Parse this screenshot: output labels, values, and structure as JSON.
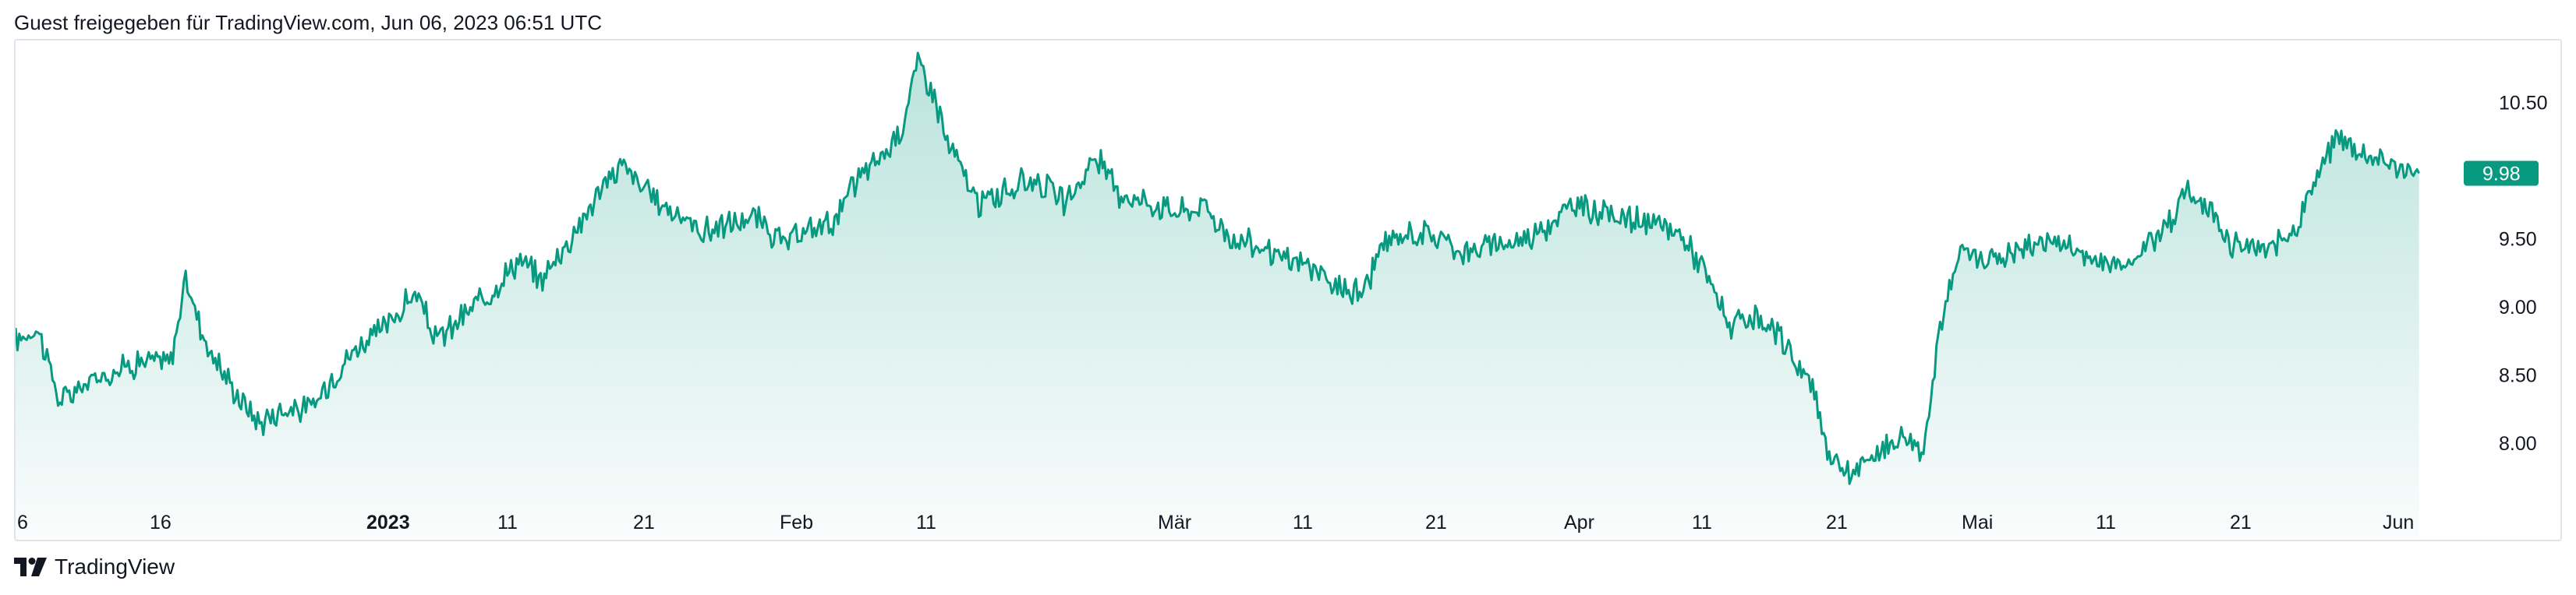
{
  "header": {
    "text": "Guest freigegeben für TradingView.com, Jun 06, 2023 06:51 UTC"
  },
  "footer": {
    "brand": "TradingView"
  },
  "colors": {
    "line": "#089981",
    "fill_top": "#089981",
    "label_bg": "#089981",
    "axis_text": "#131722",
    "border": "#e0e3eb"
  },
  "chart_data": {
    "type": "area",
    "y_ticks": [
      10.5,
      9.5,
      9.0,
      8.5,
      8.0
    ],
    "y_tick_labels": [
      "10.50",
      "9.50",
      "9.00",
      "8.50",
      "8.00"
    ],
    "last_price": {
      "value": 9.98,
      "label": "9.98"
    },
    "x_ticks": [
      {
        "label": "6",
        "bold": false
      },
      {
        "label": "16",
        "bold": false
      },
      {
        "label": "2023",
        "bold": true
      },
      {
        "label": "11",
        "bold": false
      },
      {
        "label": "21",
        "bold": false
      },
      {
        "label": "Feb",
        "bold": false
      },
      {
        "label": "11",
        "bold": false
      },
      {
        "label": "Mär",
        "bold": false
      },
      {
        "label": "11",
        "bold": false
      },
      {
        "label": "21",
        "bold": false
      },
      {
        "label": "Apr",
        "bold": false
      },
      {
        "label": "11",
        "bold": false
      },
      {
        "label": "21",
        "bold": false
      },
      {
        "label": "Mai",
        "bold": false
      },
      {
        "label": "11",
        "bold": false
      },
      {
        "label": "21",
        "bold": false
      },
      {
        "label": "Jun",
        "bold": false
      }
    ],
    "anchors": [
      [
        0,
        8.75
      ],
      [
        3,
        8.85
      ],
      [
        6,
        8.3
      ],
      [
        10,
        8.45
      ],
      [
        14,
        8.55
      ],
      [
        17,
        8.6
      ],
      [
        21,
        8.6
      ],
      [
        23,
        9.2
      ],
      [
        26,
        8.7
      ],
      [
        30,
        8.35
      ],
      [
        33,
        8.15
      ],
      [
        36,
        8.25
      ],
      [
        40,
        8.25
      ],
      [
        43,
        8.5
      ],
      [
        46,
        8.7
      ],
      [
        50,
        8.85
      ],
      [
        54,
        9.1
      ],
      [
        57,
        8.75
      ],
      [
        61,
        8.95
      ],
      [
        64,
        9.1
      ],
      [
        68,
        9.35
      ],
      [
        71,
        9.2
      ],
      [
        75,
        9.5
      ],
      [
        79,
        9.85
      ],
      [
        82,
        10.05
      ],
      [
        86,
        9.8
      ],
      [
        89,
        9.7
      ],
      [
        93,
        9.55
      ],
      [
        96,
        9.6
      ],
      [
        100,
        9.65
      ],
      [
        104,
        9.45
      ],
      [
        107,
        9.55
      ],
      [
        111,
        9.65
      ],
      [
        114,
        9.95
      ],
      [
        118,
        10.15
      ],
      [
        120,
        10.35
      ],
      [
        122,
        10.8
      ],
      [
        124,
        10.6
      ],
      [
        126,
        10.2
      ],
      [
        128,
        10.0
      ],
      [
        130,
        9.75
      ],
      [
        134,
        9.85
      ],
      [
        138,
        9.95
      ],
      [
        142,
        9.75
      ],
      [
        146,
        10.1
      ],
      [
        149,
        9.85
      ],
      [
        154,
        9.75
      ],
      [
        158,
        9.7
      ],
      [
        161,
        9.75
      ],
      [
        164,
        9.5
      ],
      [
        168,
        9.45
      ],
      [
        171,
        9.35
      ],
      [
        175,
        9.3
      ],
      [
        178,
        9.15
      ],
      [
        182,
        9.1
      ],
      [
        185,
        9.45
      ],
      [
        189,
        9.55
      ],
      [
        193,
        9.5
      ],
      [
        196,
        9.4
      ],
      [
        200,
        9.45
      ],
      [
        204,
        9.5
      ],
      [
        207,
        9.6
      ],
      [
        211,
        9.75
      ],
      [
        214,
        9.7
      ],
      [
        218,
        9.65
      ],
      [
        221,
        9.6
      ],
      [
        225,
        9.55
      ],
      [
        228,
        9.3
      ],
      [
        232,
        8.85
      ],
      [
        235,
        8.9
      ],
      [
        239,
        8.75
      ],
      [
        243,
        8.4
      ],
      [
        245,
        7.95
      ],
      [
        248,
        7.75
      ],
      [
        251,
        7.9
      ],
      [
        255,
        8.05
      ],
      [
        258,
        7.95
      ],
      [
        260,
        8.8
      ],
      [
        263,
        9.4
      ],
      [
        267,
        9.35
      ],
      [
        270,
        9.4
      ],
      [
        275,
        9.5
      ],
      [
        279,
        9.4
      ],
      [
        283,
        9.3
      ],
      [
        286,
        9.35
      ],
      [
        290,
        9.55
      ],
      [
        294,
        9.85
      ],
      [
        297,
        9.7
      ],
      [
        300,
        9.45
      ],
      [
        304,
        9.4
      ],
      [
        308,
        9.55
      ],
      [
        311,
        9.95
      ],
      [
        314,
        10.25
      ],
      [
        318,
        10.1
      ],
      [
        321,
        10.05
      ],
      [
        325,
        9.98
      ]
    ]
  }
}
